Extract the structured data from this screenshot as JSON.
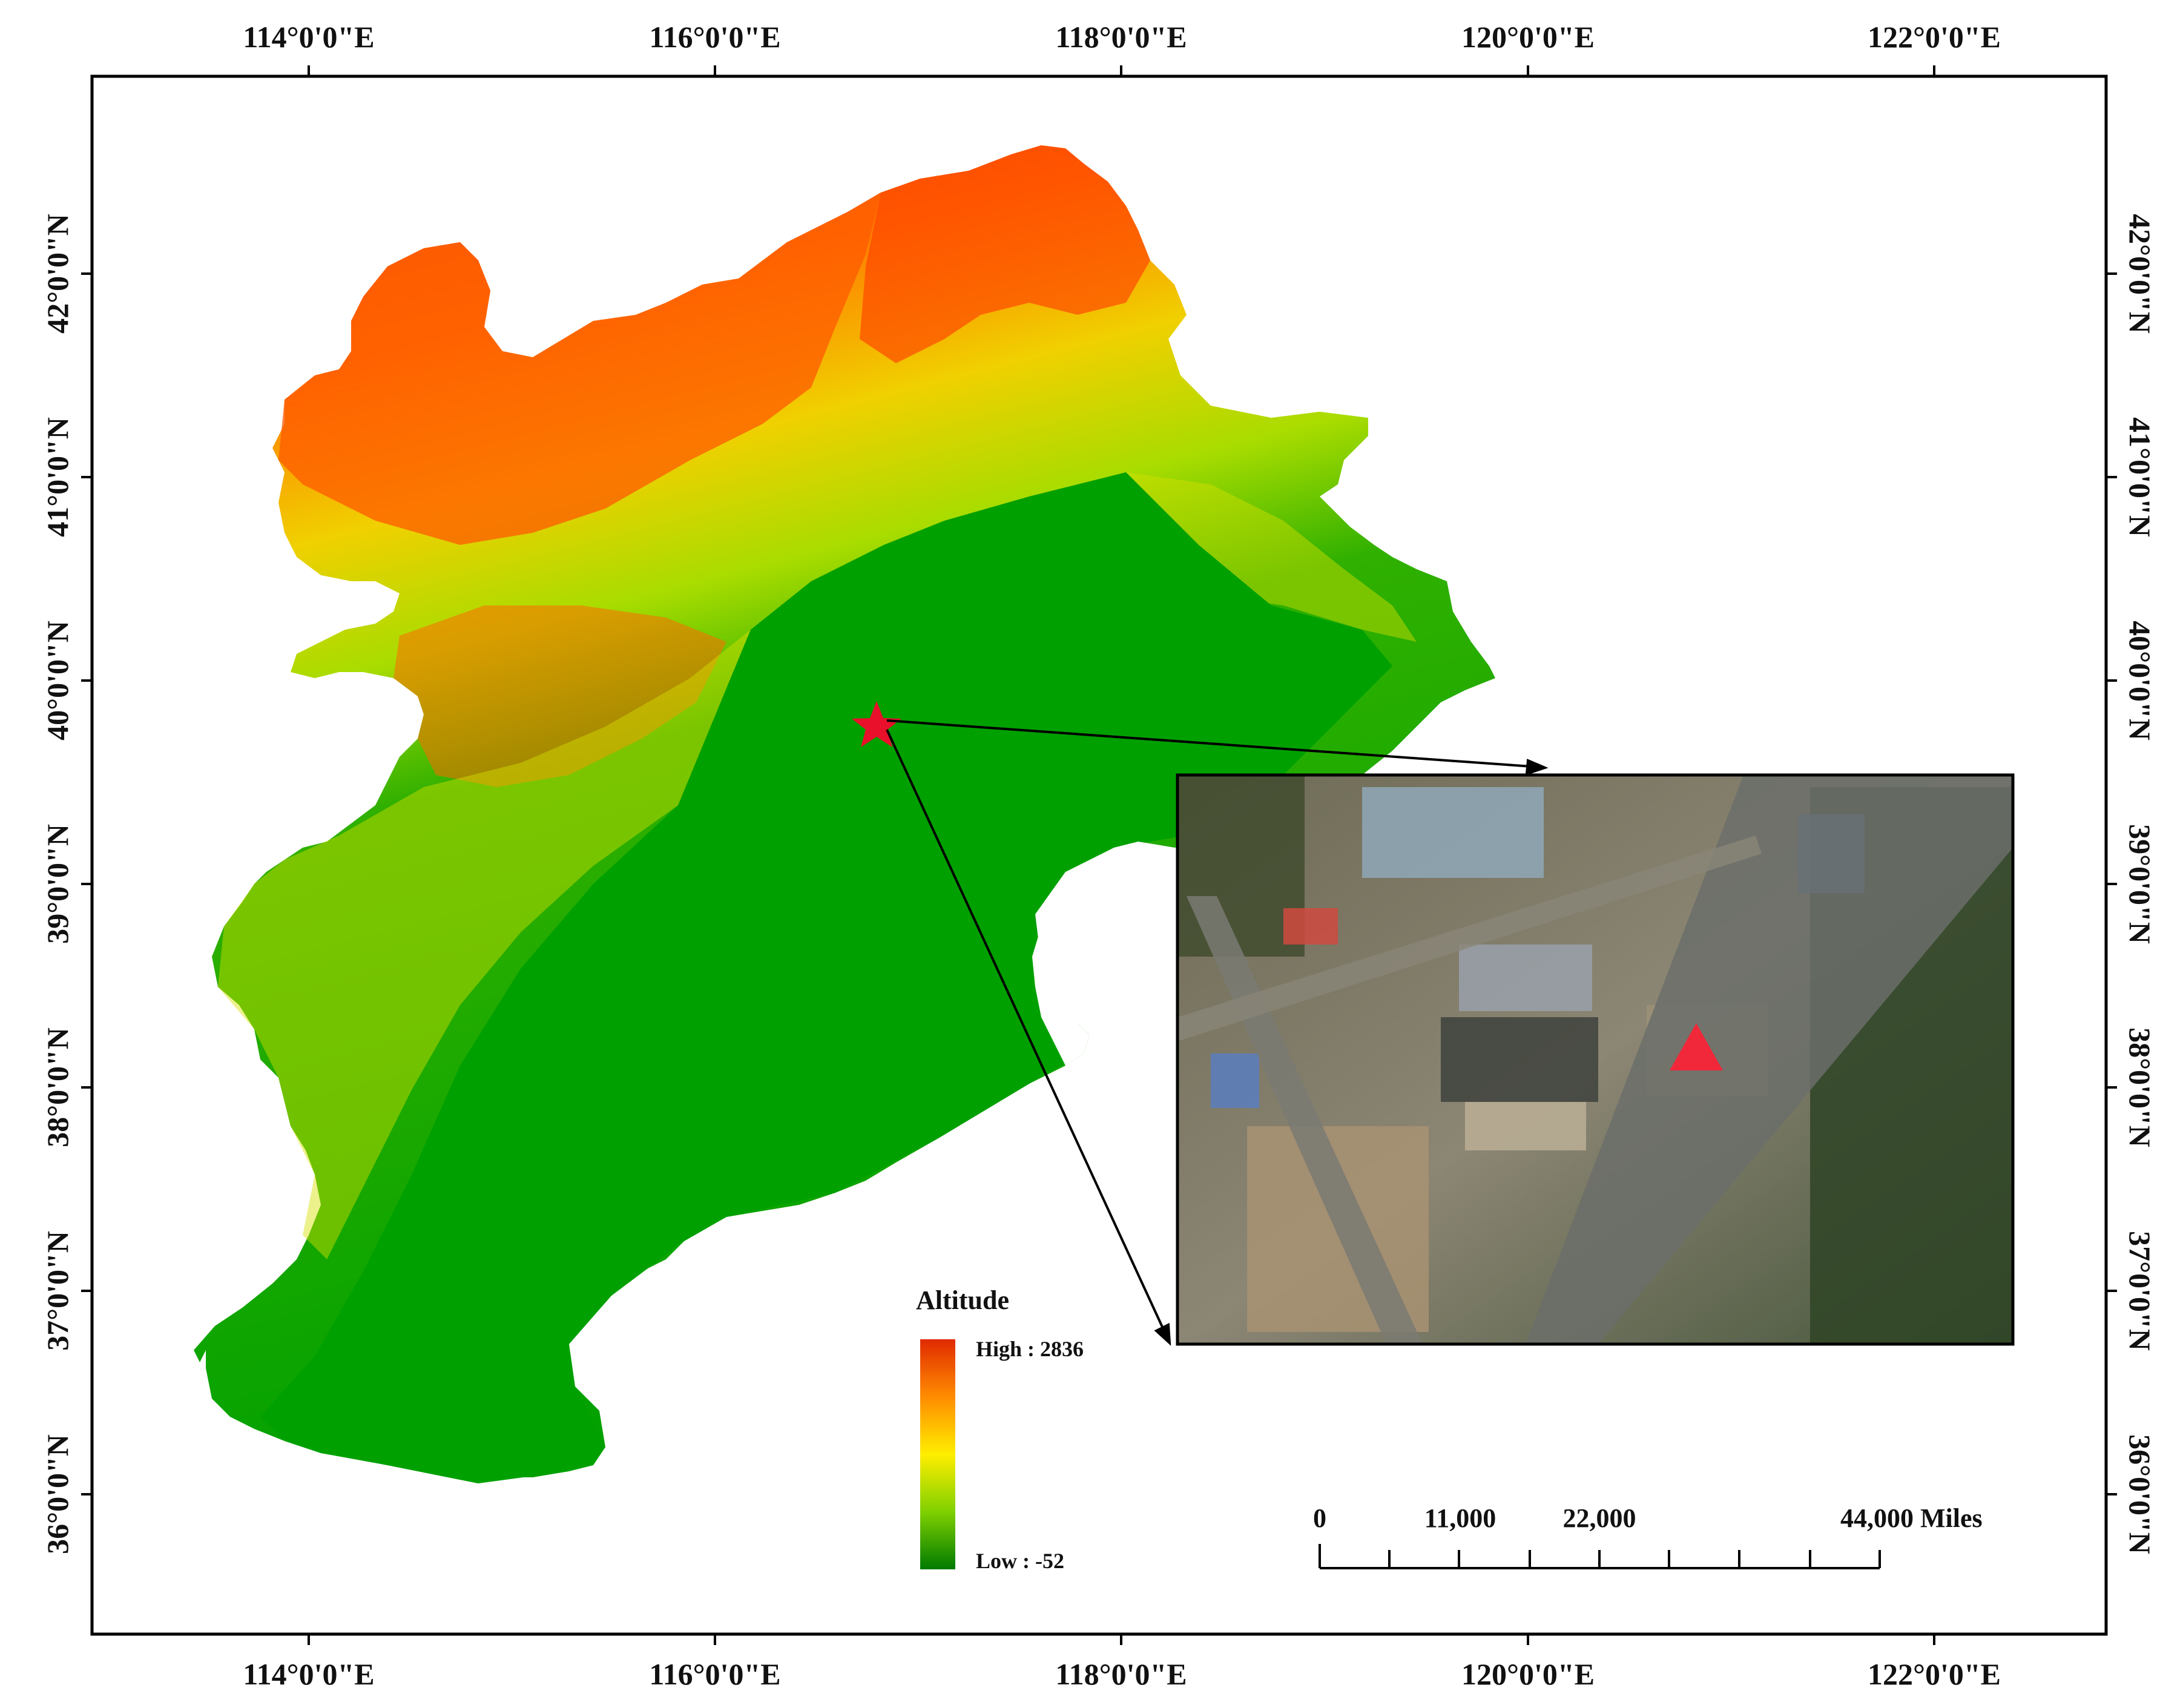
{
  "grid": {
    "top_labels": [
      "114°0'0\"E",
      "116°0'0\"E",
      "118°0'0\"E",
      "120°0'0\"E",
      "122°0'0\"E"
    ],
    "bottom_labels": [
      "114°0'0\"E",
      "116°0'0\"E",
      "118°0'0\"E",
      "120°0'0\"E",
      "122°0'0\"E"
    ],
    "left_labels": [
      "42°0'0\"N",
      "41°0'0\"N",
      "40°0'0\"N",
      "39°0'0\"N",
      "38°0'0\"N",
      "37°0'0\"N",
      "36°0'0\"N"
    ],
    "right_labels": [
      "42°0'0\"N",
      "41°0'0\"N",
      "40°0'0\"N",
      "39°0'0\"N",
      "38°0'0\"N",
      "37°0'0\"N",
      "36°0'0\"N"
    ]
  },
  "legend": {
    "title": "Altitude",
    "high_label": "High : 2836",
    "low_label": "Low : -52",
    "colors": [
      "#ff2a00",
      "#ff8c00",
      "#ffff00",
      "#7fd400",
      "#007f00"
    ]
  },
  "scale_bar": {
    "labels": [
      "0",
      "11,000",
      "22,000",
      "44,000 Miles"
    ]
  },
  "study_site": {
    "marker": "red-star",
    "color": "#e8102a",
    "inset_marker": "red-triangle"
  },
  "colors": {
    "lowland": "#00a000",
    "highland": "#ff4a00",
    "frame": "#000000"
  }
}
